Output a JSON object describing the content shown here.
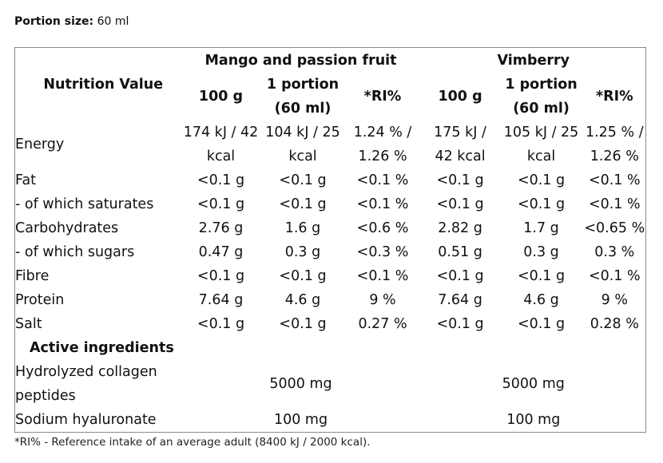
{
  "portion": {
    "label": "Portion size:",
    "value": "60 ml"
  },
  "table": {
    "header": {
      "nutrition_value": "Nutrition Value",
      "product1": "Mango and passion fruit",
      "product2": "Vimberry",
      "col_100g": "100 g",
      "col_portion_1": "1 portion",
      "col_portion_2": "(60 ml)",
      "col_ri": "*RI%"
    },
    "rows": [
      {
        "label": "Energy",
        "v1": "174 kJ / 42",
        "v1b": "kcal",
        "v2": "104 kJ / 25",
        "v2b": "kcal",
        "v3": "1.24 % /",
        "v3b": "1.26 %",
        "v4": "175 kJ /",
        "v4b": "42 kcal",
        "v5": "105 kJ / 25",
        "v5b": "kcal",
        "v6": "1.25 % /",
        "v6b": "1.26 %"
      },
      {
        "label": "Fat",
        "v1": "<0.1 g",
        "v2": "<0.1 g",
        "v3": "<0.1 %",
        "v4": "<0.1 g",
        "v5": "<0.1 g",
        "v6": "<0.1 %"
      },
      {
        "label": "- of which saturates",
        "v1": "<0.1 g",
        "v2": "<0.1 g",
        "v3": "<0.1 %",
        "v4": "<0.1 g",
        "v5": "<0.1 g",
        "v6": "<0.1 %"
      },
      {
        "label": "Carbohydrates",
        "v1": "2.76 g",
        "v2": "1.6 g",
        "v3": "<0.6 %",
        "v4": "2.82 g",
        "v5": "1.7 g",
        "v6": "<0.65 %"
      },
      {
        "label": "- of which sugars",
        "v1": "0.47 g",
        "v2": "0.3 g",
        "v3": "<0.3 %",
        "v4": "0.51 g",
        "v5": "0.3 g",
        "v6": "0.3 %"
      },
      {
        "label": "Fibre",
        "v1": "<0.1 g",
        "v2": "<0.1 g",
        "v3": "<0.1 %",
        "v4": "<0.1 g",
        "v5": "<0.1 g",
        "v6": "<0.1 %"
      },
      {
        "label": "Protein",
        "v1": "7.64 g",
        "v2": "4.6 g",
        "v3": "9 %",
        "v4": "7.64 g",
        "v5": "4.6 g",
        "v6": "9 %"
      },
      {
        "label": "Salt",
        "v1": "<0.1 g",
        "v2": "<0.1 g",
        "v3": "0.27 %",
        "v4": "<0.1 g",
        "v5": "<0.1 g",
        "v6": "0.28 %"
      }
    ],
    "active_heading": "Active ingredients",
    "active": [
      {
        "label1": "Hydrolyzed collagen",
        "label2": "peptides",
        "p1": "5000 mg",
        "p2": "5000 mg"
      },
      {
        "label1": "Sodium hyaluronate",
        "p1": "100 mg",
        "p2": "100 mg"
      }
    ]
  },
  "footnote": "*RI% - Reference intake of an average adult (8400 kJ / 2000 kcal)."
}
